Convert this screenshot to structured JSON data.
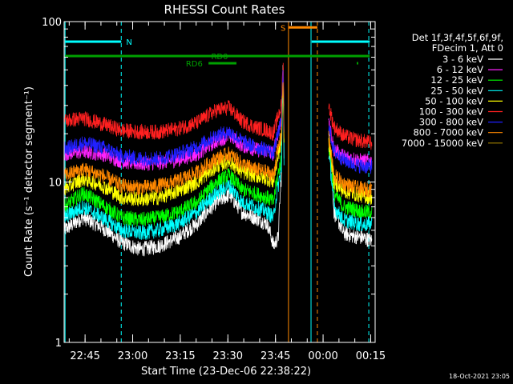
{
  "chart_data": {
    "type": "line",
    "title": "RHESSI Count Rates",
    "xlabel": "Start Time (23-Dec-06 22:38:22)",
    "ylabel": "Count Rate (s⁻¹ detector segment⁻¹)",
    "ylog": true,
    "ylim": [
      1,
      100
    ],
    "xlim_minutes": [
      0,
      98
    ],
    "x_ticks": [
      {
        "t": 6.6,
        "label": "22:45"
      },
      {
        "t": 21.6,
        "label": "23:00"
      },
      {
        "t": 36.6,
        "label": "23:15"
      },
      {
        "t": 51.6,
        "label": "23:30"
      },
      {
        "t": 66.6,
        "label": "23:45"
      },
      {
        "t": 81.6,
        "label": "00:00"
      },
      {
        "t": 96.6,
        "label": "00:15"
      }
    ],
    "y_ticks": [
      {
        "v": 1,
        "label": "1"
      },
      {
        "v": 10,
        "label": "10"
      },
      {
        "v": 100,
        "label": "100"
      }
    ],
    "legend_header": [
      "Det 1f,3f,4f,5f,6f,9f,",
      "FDecim 1, Att 0"
    ],
    "legend_position": "right",
    "series": [
      {
        "name": "3 - 6 keV",
        "color": "#ffffff",
        "points": [
          [
            0,
            5.0
          ],
          [
            6,
            6.0
          ],
          [
            12,
            5.2
          ],
          [
            18,
            4.2
          ],
          [
            24,
            3.8
          ],
          [
            30,
            4.0
          ],
          [
            36,
            4.5
          ],
          [
            42,
            5.5
          ],
          [
            48,
            7.5
          ],
          [
            52,
            8.3
          ],
          [
            56,
            6.5
          ],
          [
            60,
            6.0
          ],
          [
            64,
            5.5
          ],
          [
            66,
            4.0
          ],
          [
            67.5,
            4.5
          ],
          [
            68.5,
            11.0
          ],
          [
            69,
            60.0
          ],
          [
            69.3,
            12.0
          ],
          [
            83.3,
            20.0
          ],
          [
            85,
            6.5
          ],
          [
            88,
            4.8
          ],
          [
            91,
            4.6
          ],
          [
            94,
            4.5
          ],
          [
            97,
            4.3
          ]
        ]
      },
      {
        "name": "6 - 12 keV",
        "color": "#ff22ff",
        "points": [
          [
            0,
            15.0
          ],
          [
            6,
            15.5
          ],
          [
            12,
            15.0
          ],
          [
            18,
            13.5
          ],
          [
            24,
            13.0
          ],
          [
            30,
            13.2
          ],
          [
            36,
            13.8
          ],
          [
            42,
            15.0
          ],
          [
            48,
            18.0
          ],
          [
            52,
            19.5
          ],
          [
            56,
            17.0
          ],
          [
            60,
            16.0
          ],
          [
            64,
            15.5
          ],
          [
            66,
            15.0
          ],
          [
            68.5,
            25.0
          ],
          [
            69,
            50.0
          ],
          [
            69.3,
            20.0
          ],
          [
            83.3,
            23.0
          ],
          [
            85,
            16.0
          ],
          [
            88,
            14.5
          ],
          [
            91,
            14.0
          ],
          [
            94,
            13.5
          ],
          [
            97,
            13.5
          ]
        ]
      },
      {
        "name": "12 - 25 keV",
        "color": "#00ff00",
        "points": [
          [
            0,
            7.0
          ],
          [
            6,
            8.5
          ],
          [
            12,
            7.2
          ],
          [
            18,
            6.0
          ],
          [
            24,
            5.8
          ],
          [
            30,
            6.0
          ],
          [
            36,
            6.5
          ],
          [
            42,
            7.5
          ],
          [
            48,
            10.0
          ],
          [
            52,
            11.0
          ],
          [
            56,
            9.0
          ],
          [
            60,
            8.5
          ],
          [
            64,
            8.0
          ],
          [
            66,
            7.5
          ],
          [
            68.5,
            14.0
          ],
          [
            69,
            45.0
          ],
          [
            69.3,
            14.0
          ],
          [
            83.3,
            17.0
          ],
          [
            85,
            8.5
          ],
          [
            88,
            7.0
          ],
          [
            91,
            6.8
          ],
          [
            94,
            6.5
          ],
          [
            97,
            6.5
          ]
        ]
      },
      {
        "name": "25 - 50 keV",
        "color": "#00ffff",
        "points": [
          [
            0,
            6.0
          ],
          [
            6,
            7.0
          ],
          [
            12,
            6.0
          ],
          [
            18,
            5.0
          ],
          [
            24,
            4.8
          ],
          [
            30,
            5.0
          ],
          [
            36,
            5.5
          ],
          [
            42,
            6.5
          ],
          [
            48,
            8.5
          ],
          [
            52,
            9.5
          ],
          [
            56,
            7.5
          ],
          [
            60,
            7.0
          ],
          [
            64,
            6.5
          ],
          [
            66,
            6.0
          ],
          [
            68.5,
            12.0
          ],
          [
            69,
            40.0
          ],
          [
            69.3,
            12.0
          ],
          [
            83.3,
            15.0
          ],
          [
            85,
            7.0
          ],
          [
            88,
            5.8
          ],
          [
            91,
            5.6
          ],
          [
            94,
            5.4
          ],
          [
            97,
            5.5
          ]
        ]
      },
      {
        "name": "50 - 100 keV",
        "color": "#ffff00",
        "points": [
          [
            0,
            9.0
          ],
          [
            6,
            10.5
          ],
          [
            12,
            9.5
          ],
          [
            18,
            8.0
          ],
          [
            24,
            7.8
          ],
          [
            30,
            8.0
          ],
          [
            36,
            8.8
          ],
          [
            42,
            10.0
          ],
          [
            48,
            12.5
          ],
          [
            52,
            13.5
          ],
          [
            56,
            11.5
          ],
          [
            60,
            11.0
          ],
          [
            64,
            10.5
          ],
          [
            66,
            10.0
          ],
          [
            68.5,
            18.0
          ],
          [
            69,
            45.0
          ],
          [
            69.3,
            15.0
          ],
          [
            83.3,
            18.0
          ],
          [
            85,
            10.0
          ],
          [
            88,
            8.8
          ],
          [
            91,
            8.5
          ],
          [
            94,
            8.2
          ],
          [
            97,
            8.0
          ]
        ]
      },
      {
        "name": "100 - 300 keV",
        "color": "#ff2020",
        "points": [
          [
            0,
            24.0
          ],
          [
            6,
            25.0
          ],
          [
            12,
            23.0
          ],
          [
            18,
            21.0
          ],
          [
            24,
            20.5
          ],
          [
            30,
            20.5
          ],
          [
            36,
            21.5
          ],
          [
            42,
            23.5
          ],
          [
            48,
            28.0
          ],
          [
            52,
            29.0
          ],
          [
            56,
            24.0
          ],
          [
            60,
            22.0
          ],
          [
            64,
            21.0
          ],
          [
            66,
            20.0
          ],
          [
            68.5,
            30.0
          ],
          [
            69,
            55.0
          ],
          [
            69.3,
            28.0
          ],
          [
            83.3,
            30.0
          ],
          [
            85,
            22.0
          ],
          [
            88,
            19.5
          ],
          [
            91,
            18.5
          ],
          [
            94,
            18.0
          ],
          [
            97,
            17.5
          ]
        ]
      },
      {
        "name": "300 - 800 keV",
        "color": "#2020ff",
        "points": [
          [
            0,
            16.0
          ],
          [
            6,
            17.5
          ],
          [
            12,
            16.5
          ],
          [
            18,
            14.5
          ],
          [
            24,
            14.0
          ],
          [
            30,
            14.0
          ],
          [
            36,
            15.0
          ],
          [
            42,
            16.5
          ],
          [
            48,
            19.5
          ],
          [
            52,
            20.5
          ],
          [
            56,
            18.0
          ],
          [
            60,
            16.5
          ],
          [
            64,
            16.0
          ],
          [
            66,
            15.0
          ],
          [
            68.5,
            24.0
          ],
          [
            69,
            48.0
          ],
          [
            69.3,
            20.0
          ],
          [
            83.3,
            22.0
          ],
          [
            85,
            15.5
          ],
          [
            88,
            13.8
          ],
          [
            91,
            13.0
          ],
          [
            94,
            12.5
          ],
          [
            97,
            12.5
          ]
        ]
      },
      {
        "name": "800 - 7000 keV",
        "color": "#ff8800",
        "points": [
          [
            0,
            11.0
          ],
          [
            6,
            12.0
          ],
          [
            12,
            11.0
          ],
          [
            18,
            9.5
          ],
          [
            24,
            9.2
          ],
          [
            30,
            9.5
          ],
          [
            36,
            10.2
          ],
          [
            42,
            11.5
          ],
          [
            48,
            14.0
          ],
          [
            52,
            15.0
          ],
          [
            56,
            13.0
          ],
          [
            60,
            12.0
          ],
          [
            64,
            11.5
          ],
          [
            66,
            11.0
          ],
          [
            68.5,
            20.0
          ],
          [
            69,
            45.0
          ],
          [
            69.3,
            16.0
          ],
          [
            83.3,
            19.0
          ],
          [
            85,
            11.0
          ],
          [
            88,
            9.8
          ],
          [
            91,
            9.3
          ],
          [
            94,
            9.0
          ],
          [
            97,
            9.0
          ]
        ]
      },
      {
        "name": "7000 - 15000 keV",
        "color": "#a08000",
        "points": []
      }
    ],
    "vertical_markers": [
      {
        "t": 0.3,
        "color": "#00ffff",
        "style": "solid"
      },
      {
        "t": 18.0,
        "color": "#00ffff",
        "style": "dashed"
      },
      {
        "t": 70.7,
        "color": "#ff8800",
        "style": "solid"
      },
      {
        "t": 77.8,
        "color": "#00ffff",
        "style": "solid"
      },
      {
        "t": 79.8,
        "color": "#ff8800",
        "style": "dashed"
      },
      {
        "t": 96.0,
        "color": "#00ffff",
        "style": "dashed"
      }
    ],
    "bars": [
      {
        "label": "N",
        "color": "#00ffff",
        "y": 75,
        "segments": [
          [
            0.3,
            18.0
          ],
          [
            78.0,
            96.3
          ]
        ],
        "label_t": 20.5
      },
      {
        "label": "RD0",
        "color": "#00a000",
        "y": 61,
        "segments": [
          [
            0.3,
            96.3
          ]
        ],
        "label_t": 49.0
      },
      {
        "label": "RD6",
        "color": "#00a000",
        "y": 55,
        "segments": [
          [
            45.5,
            54.3
          ],
          [
            92.2,
            92.7
          ]
        ],
        "label_t": 41.0
      },
      {
        "label": "S",
        "color": "#ff8800",
        "y": 92,
        "segments": [
          [
            70.7,
            79.8
          ]
        ],
        "label_t": 69.0
      }
    ]
  },
  "timestamp": "18-Oct-2021 23:05"
}
